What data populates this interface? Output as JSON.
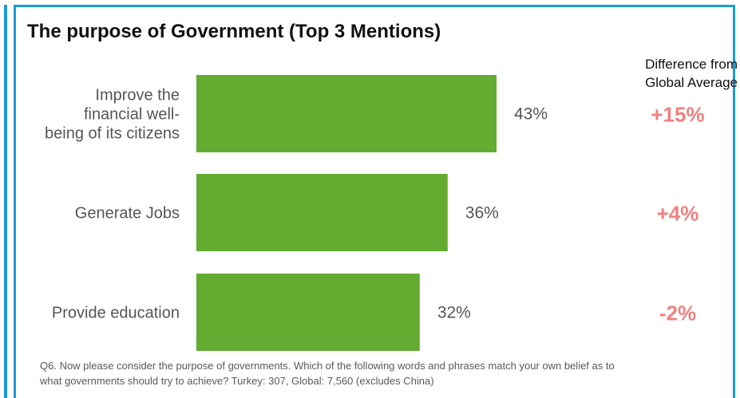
{
  "colors": {
    "bar": "#63ab31",
    "frame": "#1a9bd7",
    "positive_diff": "#f08080",
    "negative_diff": "#f08080"
  },
  "title": "The purpose of Government (Top 3 Mentions)",
  "difference_header": [
    "Difference from",
    "Global Average"
  ],
  "footnote": [
    "Q6. Now please consider the purpose of governments. Which of the following words and phrases match your own belief as to",
    "what governments should try to achieve? Turkey: 307,  Global: 7,560 (excludes China)"
  ],
  "chart_data": {
    "type": "bar",
    "orientation": "horizontal",
    "title": "The purpose of Government (Top 3 Mentions)",
    "categories": [
      [
        "Improve the",
        "financial well-",
        "being of its citizens"
      ],
      [
        "Generate Jobs"
      ],
      [
        "Provide education"
      ]
    ],
    "values": [
      43,
      36,
      32
    ],
    "value_labels": [
      "43%",
      "36%",
      "32%"
    ],
    "difference_from_global_average": [
      "+15%",
      "+4%",
      "-2%"
    ],
    "unit": "%",
    "grid": false,
    "legend": false
  }
}
